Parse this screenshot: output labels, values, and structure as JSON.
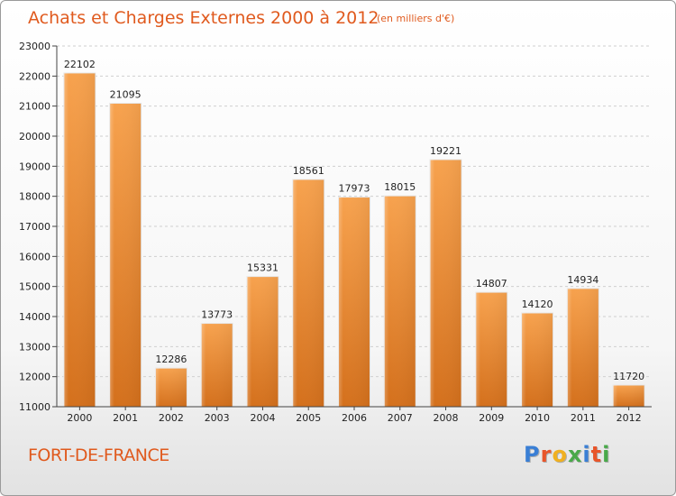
{
  "chart_data": {
    "type": "bar",
    "title": "Achats et Charges Externes 2000 à 2012",
    "subtitle": "(en milliers d'€)",
    "categories": [
      "2000",
      "2001",
      "2002",
      "2003",
      "2004",
      "2005",
      "2006",
      "2007",
      "2008",
      "2009",
      "2010",
      "2011",
      "2012"
    ],
    "values": [
      22102,
      21095,
      12286,
      13773,
      15331,
      18561,
      17973,
      18015,
      19221,
      14807,
      14120,
      14934,
      11720
    ],
    "ylim": [
      11000,
      23000
    ],
    "yticks": [
      11000,
      12000,
      13000,
      14000,
      15000,
      16000,
      17000,
      18000,
      19000,
      20000,
      21000,
      22000,
      23000
    ],
    "grid": "horizontal dashed",
    "bar_color": "#f0a050"
  },
  "city": "FORT-DE-FRANCE",
  "logo": {
    "text": "Proxiti",
    "letters": [
      {
        "ch": "P",
        "color": "#3a7fd5"
      },
      {
        "ch": "r",
        "color": "#e8552a"
      },
      {
        "ch": "o",
        "color": "#f0b020"
      },
      {
        "ch": "x",
        "color": "#49a94a"
      },
      {
        "ch": "i",
        "color": "#3a7fd5"
      },
      {
        "ch": "t",
        "color": "#e8552a"
      },
      {
        "ch": "i",
        "color": "#49a94a"
      }
    ]
  },
  "colors": {
    "accent": "#e05a1e"
  }
}
